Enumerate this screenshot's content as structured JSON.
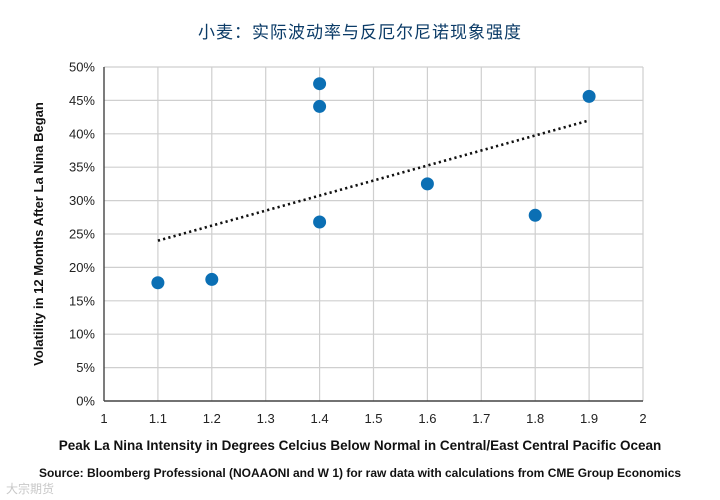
{
  "chart_data": {
    "type": "scatter",
    "title": "小麦：实际波动率与反厄尔尼诺现象强度",
    "xlabel": "Peak La Nina Intensity in Degrees Celcius Below Normal in Central/East Central Pacific Ocean",
    "ylabel": "Volatility in 12 Months After La Nina Began",
    "xlim": [
      1,
      2
    ],
    "ylim": [
      0,
      50
    ],
    "x_ticks": [
      "1",
      "1.1",
      "1.2",
      "1.3",
      "1.4",
      "1.5",
      "1.6",
      "1.7",
      "1.8",
      "1.9",
      "2"
    ],
    "y_ticks": [
      "0%",
      "5%",
      "10%",
      "15%",
      "20%",
      "25%",
      "30%",
      "35%",
      "40%",
      "45%",
      "50%"
    ],
    "points": [
      {
        "x": 1.1,
        "y": 17.7
      },
      {
        "x": 1.2,
        "y": 18.2
      },
      {
        "x": 1.4,
        "y": 47.5
      },
      {
        "x": 1.4,
        "y": 44.1
      },
      {
        "x": 1.4,
        "y": 26.8
      },
      {
        "x": 1.6,
        "y": 32.5
      },
      {
        "x": 1.8,
        "y": 27.8
      },
      {
        "x": 1.9,
        "y": 45.6
      }
    ],
    "trendline": {
      "style": "dotted",
      "x": [
        1.1,
        1.9
      ],
      "y": [
        24.0,
        42.0
      ]
    },
    "grid": true,
    "legend": "none",
    "colors": {
      "points": "#0b6fb4",
      "grid": "#cfcfcf",
      "trendline": "#111111",
      "title": "#0b3b67"
    }
  },
  "source": "Source: Bloomberg Professional (NOAAONI and W 1) for raw data with calculations from CME Group Economics",
  "watermark": "大宗期货"
}
